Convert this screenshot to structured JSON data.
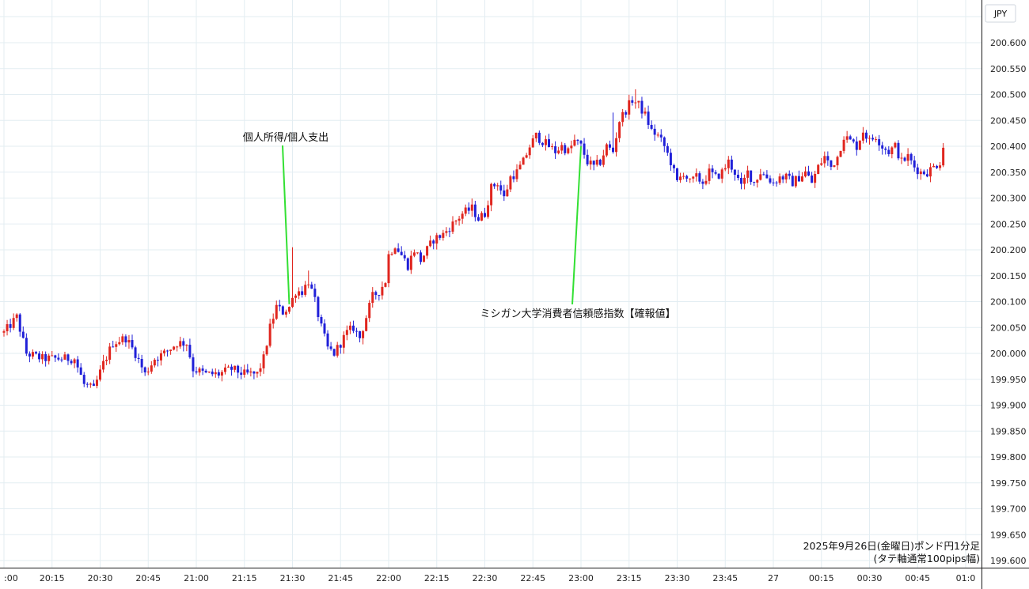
{
  "chart_data": {
    "type": "candlestick",
    "currency_label": "JPY",
    "caption_line1": "2025年9月26日(金曜日)ポンド円1分足",
    "caption_line2": "(タテ軸通常100pips幅)",
    "y_ticks": [
      "200.600",
      "200.550",
      "200.500",
      "200.450",
      "200.400",
      "200.350",
      "200.300",
      "200.250",
      "200.200",
      "200.150",
      "200.100",
      "200.050",
      "200.000",
      "199.950",
      "199.900",
      "199.850",
      "199.800",
      "199.750",
      "199.700",
      "199.650",
      "199.600"
    ],
    "ylim": [
      199.595,
      200.625
    ],
    "x_ticks": [
      {
        "label": ":00",
        "minute": 0
      },
      {
        "label": "20:15",
        "minute": 15
      },
      {
        "label": "20:30",
        "minute": 30
      },
      {
        "label": "20:45",
        "minute": 45
      },
      {
        "label": "21:00",
        "minute": 60
      },
      {
        "label": "21:15",
        "minute": 75
      },
      {
        "label": "21:30",
        "minute": 90
      },
      {
        "label": "21:45",
        "minute": 105
      },
      {
        "label": "22:00",
        "minute": 120
      },
      {
        "label": "22:15",
        "minute": 135
      },
      {
        "label": "22:30",
        "minute": 150
      },
      {
        "label": "22:45",
        "minute": 165
      },
      {
        "label": "23:00",
        "minute": 180
      },
      {
        "label": "23:15",
        "minute": 195
      },
      {
        "label": "23:30",
        "minute": 210
      },
      {
        "label": "23:45",
        "minute": 225
      },
      {
        "label": "27",
        "minute": 240
      },
      {
        "label": "00:15",
        "minute": 255
      },
      {
        "label": "00:30",
        "minute": 270
      },
      {
        "label": "00:45",
        "minute": 285
      },
      {
        "label": "01:0",
        "minute": 300
      }
    ],
    "series_path": [
      [
        0,
        200.04
      ],
      [
        4,
        200.07
      ],
      [
        7,
        200.0
      ],
      [
        12,
        199.99
      ],
      [
        18,
        199.99
      ],
      [
        22,
        199.99
      ],
      [
        25,
        199.94
      ],
      [
        28,
        199.93
      ],
      [
        31,
        199.98
      ],
      [
        34,
        200.02
      ],
      [
        38,
        200.03
      ],
      [
        41,
        200.0
      ],
      [
        44,
        199.96
      ],
      [
        47,
        199.99
      ],
      [
        50,
        200.0
      ],
      [
        54,
        200.02
      ],
      [
        57,
        200.02
      ],
      [
        59,
        199.97
      ],
      [
        63,
        199.96
      ],
      [
        67,
        199.96
      ],
      [
        71,
        199.97
      ],
      [
        75,
        199.96
      ],
      [
        79,
        199.96
      ],
      [
        81,
        199.99
      ],
      [
        83,
        200.05
      ],
      [
        85,
        200.09
      ],
      [
        87,
        200.08
      ],
      [
        89,
        200.09
      ],
      [
        91,
        200.12
      ],
      [
        93,
        200.12
      ],
      [
        95,
        200.14
      ],
      [
        97,
        200.1
      ],
      [
        99,
        200.05
      ],
      [
        101,
        200.01
      ],
      [
        103,
        200.0
      ],
      [
        105,
        200.02
      ],
      [
        107,
        200.04
      ],
      [
        109,
        200.05
      ],
      [
        111,
        200.03
      ],
      [
        113,
        200.07
      ],
      [
        115,
        200.11
      ],
      [
        117,
        200.12
      ],
      [
        119,
        200.14
      ],
      [
        120,
        200.19
      ],
      [
        122,
        200.21
      ],
      [
        124,
        200.19
      ],
      [
        126,
        200.17
      ],
      [
        128,
        200.2
      ],
      [
        130,
        200.18
      ],
      [
        132,
        200.2
      ],
      [
        134,
        200.22
      ],
      [
        137,
        200.23
      ],
      [
        140,
        200.25
      ],
      [
        143,
        200.27
      ],
      [
        146,
        200.28
      ],
      [
        148,
        200.26
      ],
      [
        150,
        200.27
      ],
      [
        152,
        200.32
      ],
      [
        154,
        200.33
      ],
      [
        156,
        200.3
      ],
      [
        158,
        200.34
      ],
      [
        160,
        200.35
      ],
      [
        162,
        200.37
      ],
      [
        164,
        200.4
      ],
      [
        166,
        200.42
      ],
      [
        168,
        200.41
      ],
      [
        170,
        200.4
      ],
      [
        172,
        200.39
      ],
      [
        174,
        200.4
      ],
      [
        176,
        200.39
      ],
      [
        178,
        200.41
      ],
      [
        180,
        200.4
      ],
      [
        182,
        200.37
      ],
      [
        184,
        200.36
      ],
      [
        186,
        200.37
      ],
      [
        188,
        200.4
      ],
      [
        190,
        200.39
      ],
      [
        192,
        200.45
      ],
      [
        194,
        200.47
      ],
      [
        196,
        200.49
      ],
      [
        198,
        200.48
      ],
      [
        200,
        200.46
      ],
      [
        202,
        200.43
      ],
      [
        204,
        200.42
      ],
      [
        206,
        200.4
      ],
      [
        208,
        200.37
      ],
      [
        210,
        200.33
      ],
      [
        212,
        200.35
      ],
      [
        214,
        200.33
      ],
      [
        216,
        200.34
      ],
      [
        218,
        200.33
      ],
      [
        220,
        200.35
      ],
      [
        222,
        200.34
      ],
      [
        224,
        200.35
      ],
      [
        226,
        200.37
      ],
      [
        228,
        200.35
      ],
      [
        230,
        200.32
      ],
      [
        232,
        200.35
      ],
      [
        234,
        200.33
      ],
      [
        236,
        200.35
      ],
      [
        238,
        200.34
      ],
      [
        240,
        200.33
      ],
      [
        242,
        200.34
      ],
      [
        244,
        200.34
      ],
      [
        246,
        200.33
      ],
      [
        248,
        200.34
      ],
      [
        250,
        200.35
      ],
      [
        252,
        200.33
      ],
      [
        254,
        200.36
      ],
      [
        256,
        200.38
      ],
      [
        258,
        200.36
      ],
      [
        260,
        200.38
      ],
      [
        262,
        200.42
      ],
      [
        264,
        200.41
      ],
      [
        266,
        200.4
      ],
      [
        268,
        200.43
      ],
      [
        270,
        200.41
      ],
      [
        272,
        200.42
      ],
      [
        274,
        200.4
      ],
      [
        276,
        200.39
      ],
      [
        278,
        200.4
      ],
      [
        280,
        200.37
      ],
      [
        282,
        200.38
      ],
      [
        284,
        200.36
      ],
      [
        286,
        200.35
      ],
      [
        288,
        200.35
      ],
      [
        290,
        200.36
      ],
      [
        292,
        200.37
      ],
      [
        293,
        200.4
      ]
    ],
    "spikes": [
      {
        "minute": 90,
        "high": 200.205
      },
      {
        "minute": 95,
        "high": 200.16
      },
      {
        "minute": 190,
        "high": 200.465
      },
      {
        "minute": 197,
        "high": 200.51
      },
      {
        "minute": 236,
        "high": 200.295
      }
    ],
    "annotations": [
      {
        "text": "個人所得/個人支出",
        "minute": 89,
        "price": 200.095
      },
      {
        "text": "ミシガン大学消費者信頼感指数【確報値】",
        "minute": 180,
        "price": 200.4
      }
    ]
  }
}
